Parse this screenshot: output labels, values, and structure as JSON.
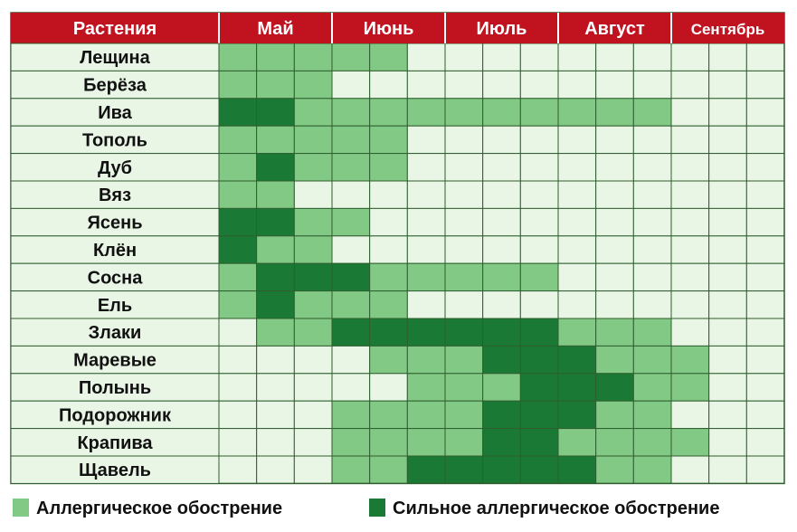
{
  "chart_data": {
    "type": "heatmap",
    "header_label": "Растения",
    "months": [
      {
        "label": "Май",
        "weeks": 3
      },
      {
        "label": "Июнь",
        "weeks": 3
      },
      {
        "label": "Июль",
        "weeks": 3
      },
      {
        "label": "Август",
        "weeks": 3
      },
      {
        "label": "Сентябрь",
        "weeks": 3
      }
    ],
    "legend": [
      {
        "level": 1,
        "label": "Аллергическое обострение"
      },
      {
        "level": 2,
        "label": "Сильное аллергическое обострение"
      }
    ],
    "colors": {
      "header_bg": "#c0121f",
      "header_text": "#ffffff",
      "empty": "#e9f6e6",
      "grid": "#2f5f2f",
      "level_1": "#82c985",
      "level_2": "#1a7a35"
    },
    "rows": [
      {
        "plant": "Лещина",
        "values": [
          1,
          1,
          1,
          1,
          1,
          0,
          0,
          0,
          0,
          0,
          0,
          0,
          0,
          0,
          0
        ]
      },
      {
        "plant": "Берёза",
        "values": [
          1,
          1,
          1,
          0,
          0,
          0,
          0,
          0,
          0,
          0,
          0,
          0,
          0,
          0,
          0
        ]
      },
      {
        "plant": "Ива",
        "values": [
          2,
          2,
          1,
          1,
          1,
          1,
          1,
          1,
          1,
          1,
          1,
          1,
          0,
          0,
          0
        ]
      },
      {
        "plant": "Тополь",
        "values": [
          1,
          1,
          1,
          1,
          1,
          0,
          0,
          0,
          0,
          0,
          0,
          0,
          0,
          0,
          0
        ]
      },
      {
        "plant": "Дуб",
        "values": [
          1,
          2,
          1,
          1,
          1,
          0,
          0,
          0,
          0,
          0,
          0,
          0,
          0,
          0,
          0
        ]
      },
      {
        "plant": "Вяз",
        "values": [
          1,
          1,
          0,
          0,
          0,
          0,
          0,
          0,
          0,
          0,
          0,
          0,
          0,
          0,
          0
        ]
      },
      {
        "plant": "Ясень",
        "values": [
          2,
          2,
          1,
          1,
          0,
          0,
          0,
          0,
          0,
          0,
          0,
          0,
          0,
          0,
          0
        ]
      },
      {
        "plant": "Клён",
        "values": [
          2,
          1,
          1,
          0,
          0,
          0,
          0,
          0,
          0,
          0,
          0,
          0,
          0,
          0,
          0
        ]
      },
      {
        "plant": "Сосна",
        "values": [
          1,
          2,
          2,
          2,
          1,
          1,
          1,
          1,
          1,
          0,
          0,
          0,
          0,
          0,
          0
        ]
      },
      {
        "plant": "Ель",
        "values": [
          1,
          2,
          1,
          1,
          1,
          0,
          0,
          0,
          0,
          0,
          0,
          0,
          0,
          0,
          0
        ]
      },
      {
        "plant": "Злаки",
        "values": [
          0,
          1,
          1,
          2,
          2,
          2,
          2,
          2,
          2,
          1,
          1,
          1,
          0,
          0,
          0
        ]
      },
      {
        "plant": "Маревые",
        "values": [
          0,
          0,
          0,
          0,
          1,
          1,
          1,
          2,
          2,
          2,
          1,
          1,
          1,
          0,
          0
        ]
      },
      {
        "plant": "Полынь",
        "values": [
          0,
          0,
          0,
          0,
          0,
          1,
          1,
          1,
          2,
          2,
          2,
          1,
          1,
          0,
          0
        ]
      },
      {
        "plant": "Подорожник",
        "values": [
          0,
          0,
          0,
          1,
          1,
          1,
          1,
          2,
          2,
          2,
          1,
          1,
          0,
          0,
          0
        ]
      },
      {
        "plant": "Крапива",
        "values": [
          0,
          0,
          0,
          1,
          1,
          1,
          1,
          2,
          2,
          1,
          1,
          1,
          1,
          0,
          0
        ]
      },
      {
        "plant": "Щавель",
        "values": [
          0,
          0,
          0,
          1,
          1,
          2,
          2,
          2,
          2,
          2,
          1,
          1,
          0,
          0,
          0
        ]
      }
    ]
  }
}
